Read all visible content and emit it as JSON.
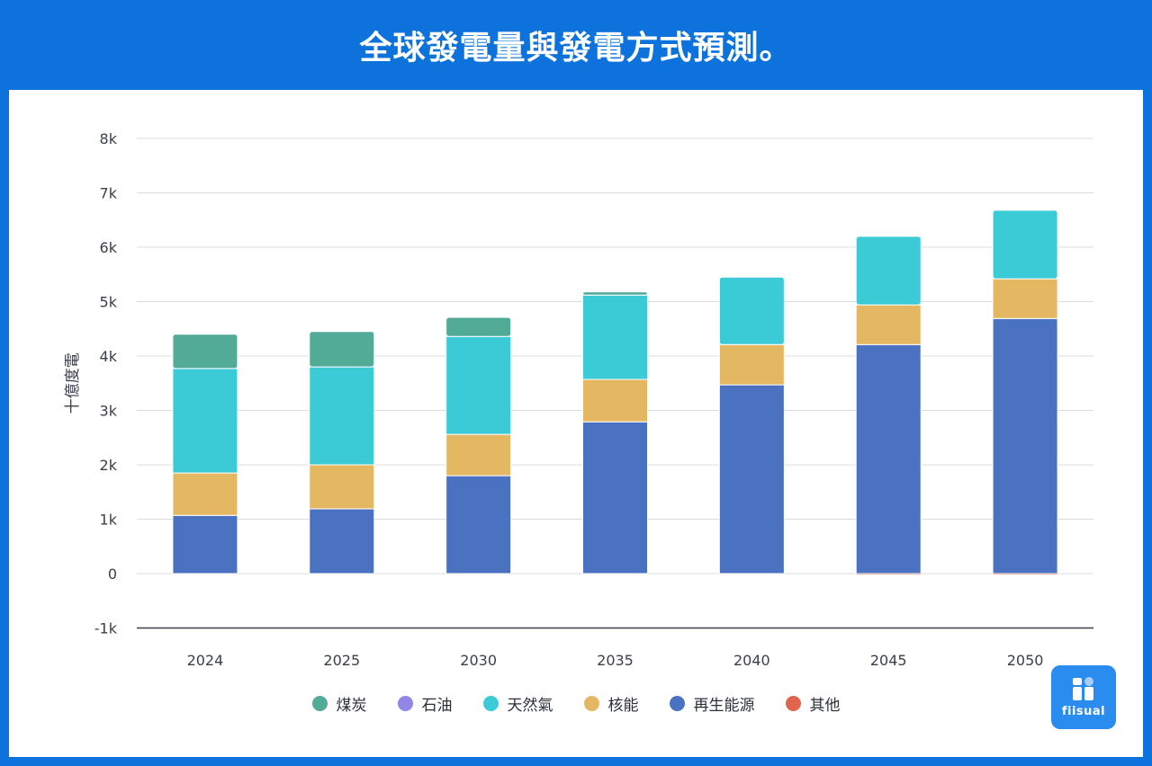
{
  "header": {
    "title": "全球發電量與發電方式預測。"
  },
  "logo": {
    "text": "fiisual"
  },
  "chart_data": {
    "type": "bar",
    "stacked": true,
    "title": "全球發電量與發電方式預測。",
    "xlabel": "",
    "ylabel": "十億度電",
    "categories": [
      "2024",
      "2025",
      "2030",
      "2035",
      "2040",
      "2045",
      "2050"
    ],
    "ylim": [
      -1000,
      8000
    ],
    "yticks": [
      -1000,
      0,
      1000,
      2000,
      3000,
      4000,
      5000,
      6000,
      7000,
      8000
    ],
    "ytick_labels": [
      "-1k",
      "0",
      "1k",
      "2k",
      "3k",
      "4k",
      "5k",
      "6k",
      "7k",
      "8k"
    ],
    "grid": true,
    "legend_position": "bottom",
    "series": [
      {
        "name": "再生能源",
        "color": "#4a72c0",
        "values": [
          1070,
          1190,
          1800,
          2790,
          3470,
          4210,
          4690
        ]
      },
      {
        "name": "核能",
        "color": "#e4b762",
        "values": [
          780,
          810,
          760,
          780,
          740,
          730,
          730
        ]
      },
      {
        "name": "天然氣",
        "color": "#3bcbd6",
        "values": [
          1920,
          1800,
          1800,
          1550,
          1240,
          1260,
          1260
        ]
      },
      {
        "name": "石油",
        "color": "#8f86e6",
        "values": [
          0,
          0,
          0,
          0,
          0,
          0,
          0
        ]
      },
      {
        "name": "煤炭",
        "color": "#52ab96",
        "values": [
          630,
          650,
          350,
          60,
          0,
          0,
          0
        ]
      },
      {
        "name": "其他",
        "color": "#e0654f",
        "values": [
          0,
          0,
          0,
          0,
          0,
          -20,
          -20
        ]
      }
    ],
    "legend": [
      {
        "name": "煤炭",
        "color": "#52ab96"
      },
      {
        "name": "石油",
        "color": "#8f86e6"
      },
      {
        "name": "天然氣",
        "color": "#3bcbd6"
      },
      {
        "name": "核能",
        "color": "#e4b762"
      },
      {
        "name": "再生能源",
        "color": "#4a72c0"
      },
      {
        "name": "其他",
        "color": "#e0654f"
      }
    ]
  }
}
